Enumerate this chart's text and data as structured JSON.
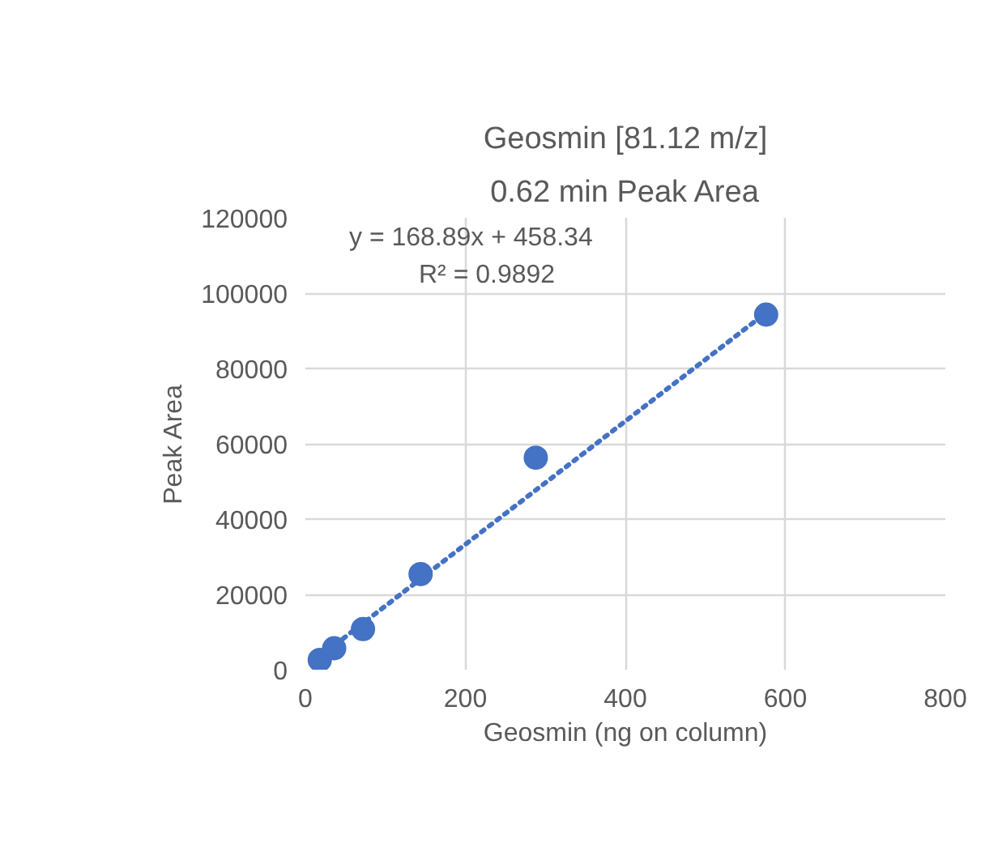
{
  "chart_data": {
    "type": "scatter",
    "title": "Geosmin [81.12 m/z]",
    "subtitle": "0.62 min Peak Area",
    "xlabel": "Geosmin (ng on column)",
    "ylabel": "Peak Area",
    "series": [
      {
        "color": "#4472c4",
        "x": [
          18,
          36,
          72,
          144,
          288,
          576
        ],
        "values": [
          2600,
          5700,
          10800,
          25400,
          56300,
          94300
        ],
        "marker": "circle"
      },
      {
        "type": "line",
        "color": "#4472c4",
        "x": [
          18,
          576
        ],
        "values": [
          3500,
          94800
        ],
        "line_style": "dotted"
      }
    ],
    "annotations": [
      "y = 168.89x + 458.34",
      "R² = 0.9892"
    ],
    "xlim": [
      0,
      800
    ],
    "xticks": [
      0,
      200,
      400,
      600,
      800
    ],
    "ylim": [
      0,
      120000
    ],
    "yticks": [
      0,
      20000,
      40000,
      60000,
      80000,
      100000,
      120000
    ],
    "grid": true
  }
}
